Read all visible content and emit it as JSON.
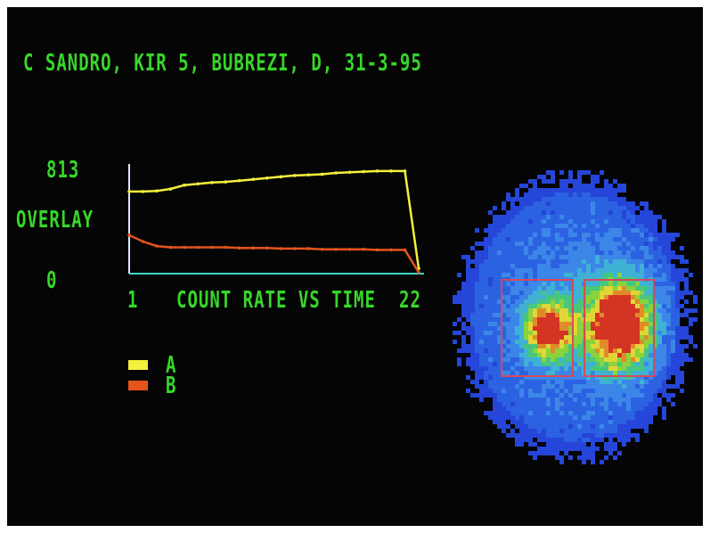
{
  "header": {
    "title": "C SANDRO, KIR 5, BUBREZI, D, 31-3-95"
  },
  "plot": {
    "overlay_label": "OVERLAY"
  },
  "colors": {
    "text": "#37d62a",
    "series_a": "#f4f03c",
    "series_b": "#e4541c",
    "roi": "#d64a5a",
    "background": "#050505"
  },
  "chart_data": {
    "type": "line",
    "title": "",
    "xlabel": "COUNT RATE VS TIME",
    "ylabel": "",
    "xlim": [
      1,
      22
    ],
    "ylim": [
      0,
      813
    ],
    "x_tick_labels": [
      "1",
      "22"
    ],
    "y_tick_labels": [
      "813",
      "0"
    ],
    "x": [
      1,
      2,
      3,
      4,
      5,
      6,
      7,
      8,
      9,
      10,
      11,
      12,
      13,
      14,
      15,
      16,
      17,
      18,
      19,
      20,
      21,
      22
    ],
    "series": [
      {
        "name": "A",
        "values": [
          640,
          640,
          645,
          660,
          690,
          700,
          710,
          715,
          725,
          735,
          745,
          755,
          765,
          770,
          775,
          785,
          790,
          795,
          800,
          800,
          800,
          40
        ]
      },
      {
        "name": "B",
        "values": [
          300,
          250,
          215,
          205,
          205,
          205,
          205,
          205,
          200,
          200,
          200,
          195,
          195,
          195,
          190,
          190,
          190,
          190,
          185,
          185,
          185,
          10
        ]
      }
    ],
    "legend": {
      "placement": "bottom-left",
      "entries": [
        "A",
        "B"
      ]
    },
    "grid": false
  }
}
